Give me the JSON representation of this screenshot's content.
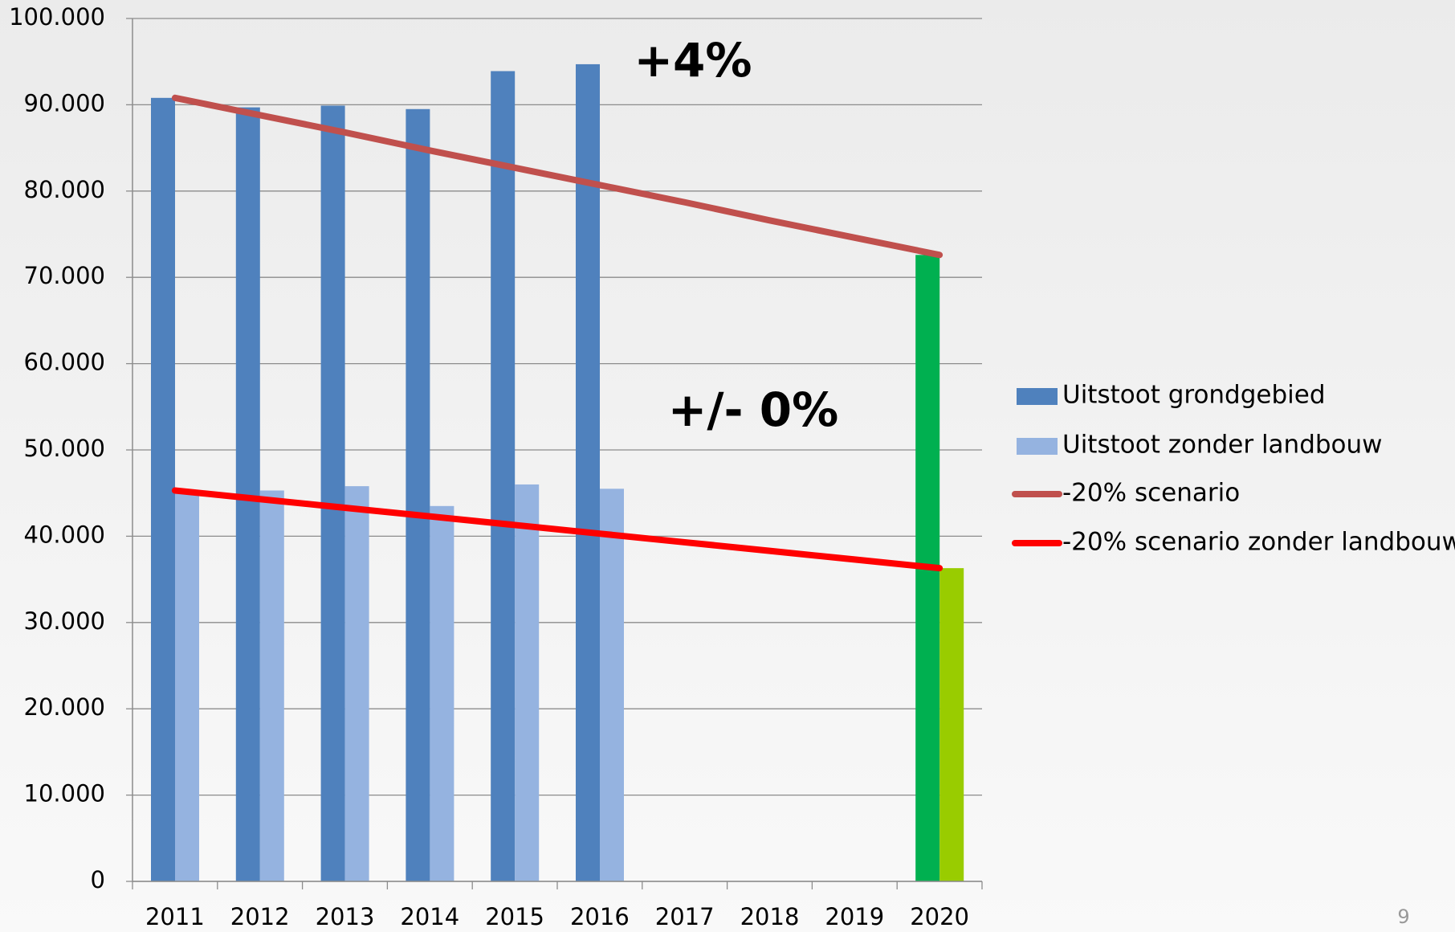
{
  "chart_data": {
    "type": "bar",
    "categories": [
      "2011",
      "2012",
      "2013",
      "2014",
      "2015",
      "2016",
      "2017",
      "2018",
      "2019",
      "2020"
    ],
    "series": [
      {
        "name": "Uitstoot grondgebied",
        "type": "bar",
        "color": "#4f81bd",
        "colors": [
          "#4f81bd",
          "#4f81bd",
          "#4f81bd",
          "#4f81bd",
          "#4f81bd",
          "#4f81bd",
          "#4f81bd",
          "#4f81bd",
          "#4f81bd",
          "#00b050"
        ],
        "values": [
          90800,
          89700,
          89900,
          89500,
          93900,
          94700,
          null,
          null,
          null,
          72600
        ]
      },
      {
        "name": "Uitstoot zonder landbouw",
        "type": "bar",
        "color": "#95b3e0",
        "colors": [
          "#95b3e0",
          "#95b3e0",
          "#95b3e0",
          "#95b3e0",
          "#95b3e0",
          "#95b3e0",
          "#95b3e0",
          "#95b3e0",
          "#95b3e0",
          "#99cc00"
        ],
        "values": [
          45000,
          45300,
          45800,
          43500,
          46000,
          45500,
          null,
          null,
          null,
          36300
        ]
      },
      {
        "name": "-20% scenario",
        "type": "line",
        "color": "#c0504d",
        "values": [
          90800,
          88800,
          86800,
          84700,
          82700,
          80700,
          78700,
          76600,
          74600,
          72600
        ]
      },
      {
        "name": "-20% scenario zonder landbouw",
        "type": "line",
        "color": "#ff0000",
        "values": [
          45300,
          44300,
          43300,
          42300,
          41300,
          40300,
          39300,
          38300,
          37300,
          36300
        ]
      }
    ],
    "ylim": [
      0,
      100000
    ],
    "yticks": [
      0,
      {
        "value": 10000,
        "label": "10.000"
      },
      {
        "value": 20000,
        "label": "20.000"
      },
      {
        "value": 30000,
        "label": "30.000"
      },
      {
        "value": 40000,
        "label": "40.000"
      },
      {
        "value": 50000,
        "label": "50.000"
      },
      {
        "value": 60000,
        "label": "60.000"
      },
      {
        "value": 70000,
        "label": "70.000"
      },
      {
        "value": 80000,
        "label": "80.000"
      },
      {
        "value": 90000,
        "label": "90.000"
      },
      {
        "value": 100000,
        "label": "100.000"
      }
    ],
    "grid": true,
    "legend": "right",
    "annotations": [
      "+4%",
      "+/- 0%"
    ],
    "page_number": "9"
  }
}
